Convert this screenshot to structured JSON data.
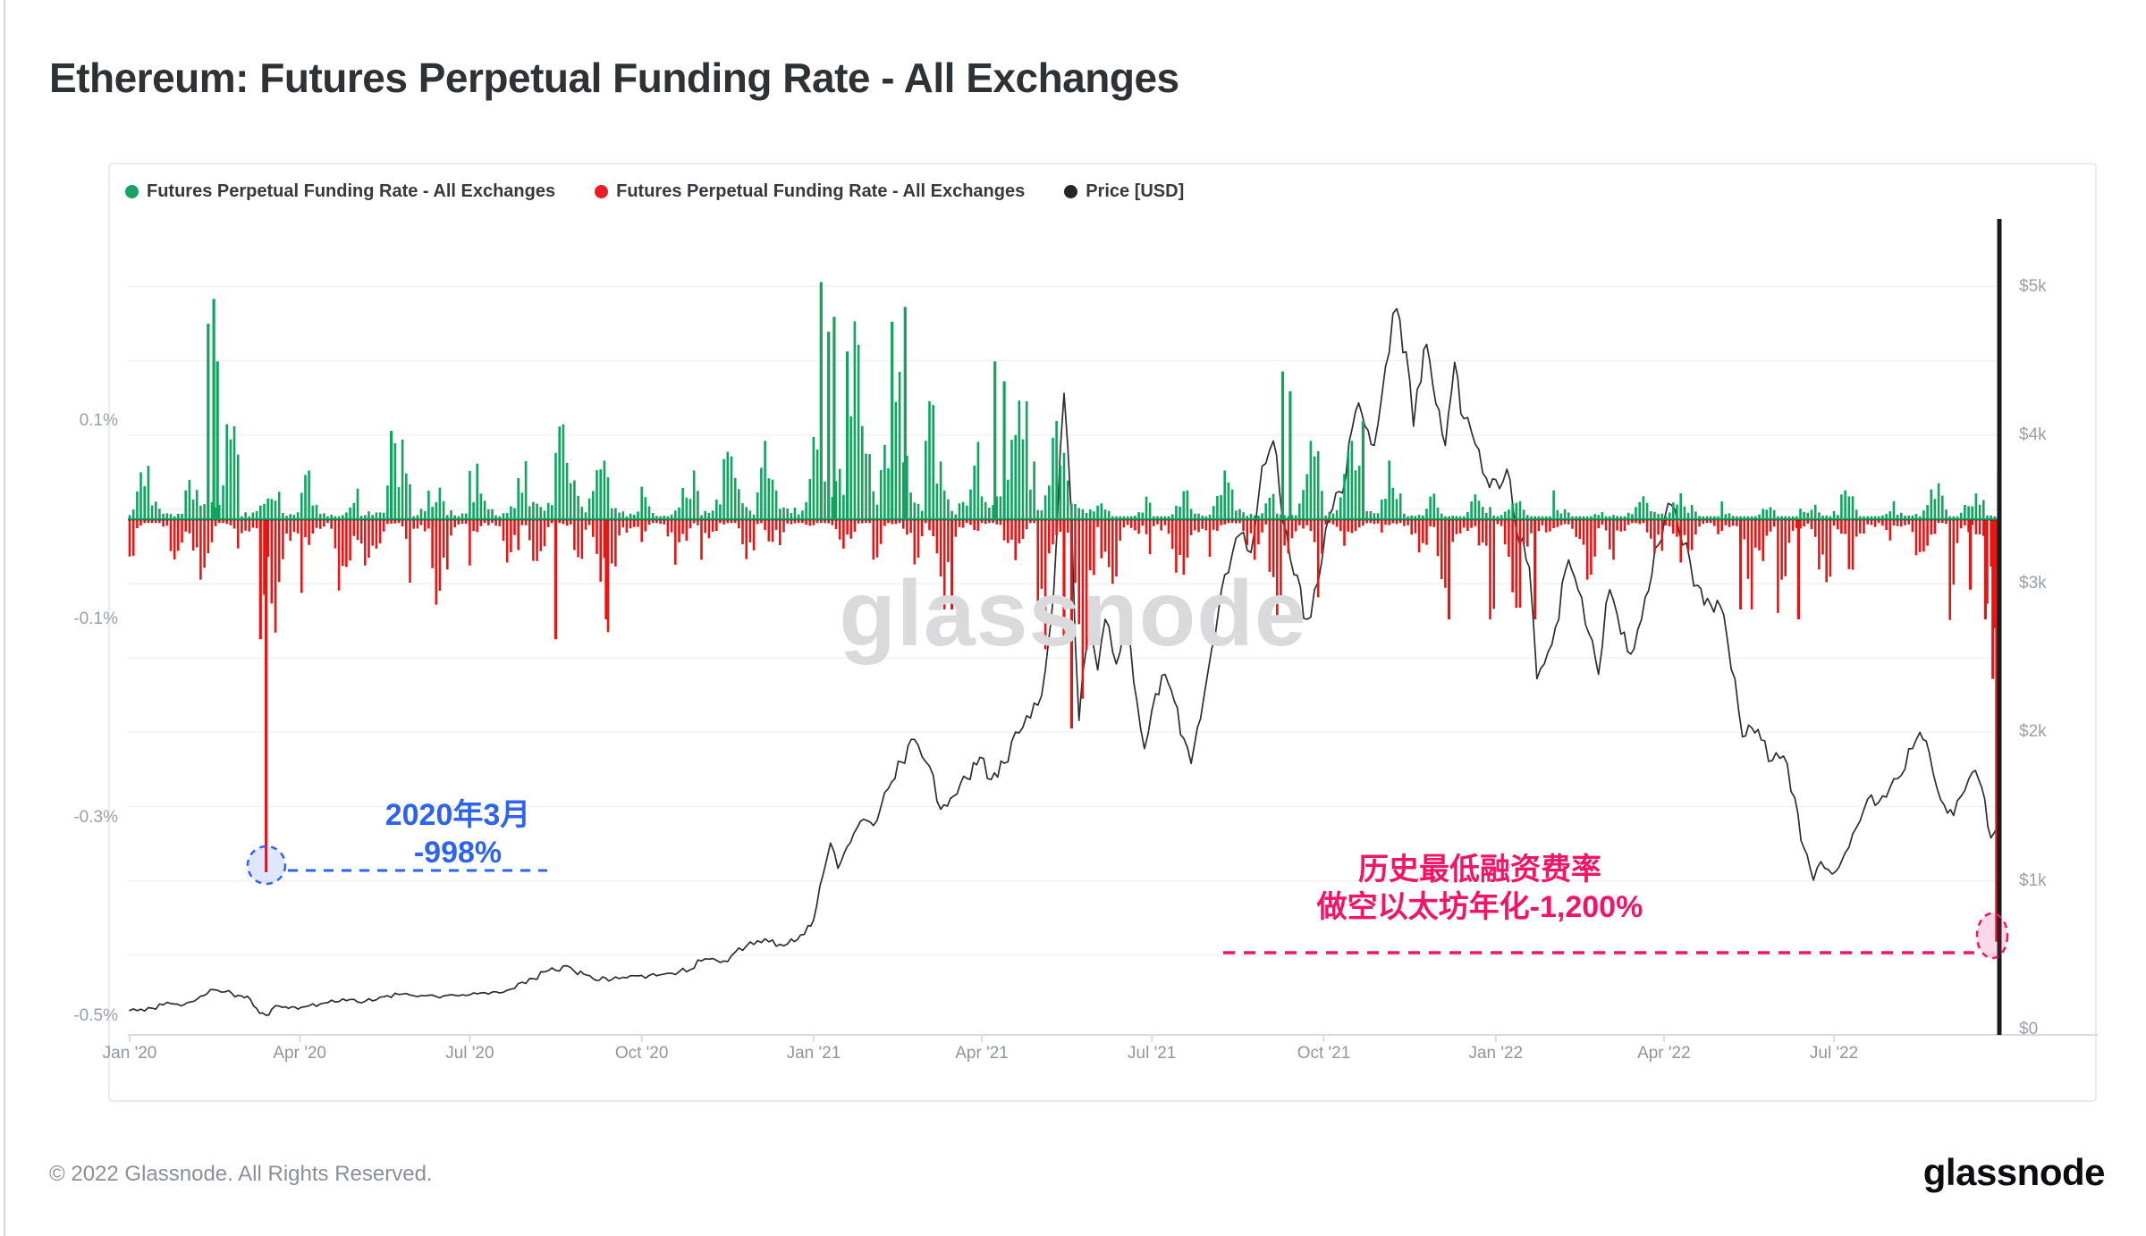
{
  "page": {
    "title": "Ethereum: Futures Perpetual Funding Rate - All Exchanges",
    "watermark": "glassnode",
    "footer_left": "© 2022 Glassnode. All Rights Reserved.",
    "logo": "glassnode"
  },
  "legend": [
    {
      "label": "Futures Perpetual Funding Rate - All Exchanges",
      "color": "#17a364"
    },
    {
      "label": "Futures Perpetual Funding Rate - All Exchanges",
      "color": "#ed1c24"
    },
    {
      "label": "Price [USD]",
      "color": "#232528"
    }
  ],
  "annotations": {
    "blue": {
      "line1": "2020年3月",
      "line2": "-998%",
      "color": "#2e63f0"
    },
    "pink": {
      "line1": "历史最低融资费率",
      "line2": "做空以太坊年化-1,200%",
      "color": "#f01567"
    }
  },
  "chart_data": {
    "type": "mixed",
    "title": "Ethereum: Futures Perpetual Funding Rate - All Exchanges",
    "series_colors": {
      "funding_positive": "#12a35f",
      "funding_negative": "#e91414",
      "price": "#2e2e30"
    },
    "funding_axis": {
      "unit": "%",
      "ticks": [
        0.1,
        -0.1,
        -0.3,
        -0.5
      ],
      "tick_labels": [
        "0.1%",
        "-0.1%",
        "-0.3%",
        "-0.5%"
      ]
    },
    "price_axis": {
      "unit": "USD",
      "ticks": [
        5000,
        4000,
        3000,
        2000,
        1000,
        0
      ],
      "tick_labels": [
        "$5k",
        "$4k",
        "$3k",
        "$2k",
        "$1k",
        "$0"
      ],
      "gridline_step_usd": 500
    },
    "x_axis": {
      "ticks": [
        {
          "label": "Jan '20",
          "day": 0
        },
        {
          "label": "Apr '20",
          "day": 91
        },
        {
          "label": "Jul '20",
          "day": 182
        },
        {
          "label": "Oct '20",
          "day": 274
        },
        {
          "label": "Jan '21",
          "day": 366
        },
        {
          "label": "Apr '21",
          "day": 456
        },
        {
          "label": "Jul '21",
          "day": 547
        },
        {
          "label": "Oct '21",
          "day": 639
        },
        {
          "label": "Jan '22",
          "day": 731
        },
        {
          "label": "Apr '22",
          "day": 821
        },
        {
          "label": "Jul '22",
          "day": 912
        }
      ],
      "days_total": 1001
    },
    "month_lengths": [
      31,
      29,
      31,
      30,
      31,
      30,
      31,
      31,
      30,
      31,
      30,
      31,
      31,
      28,
      31,
      30,
      31,
      30,
      31,
      31,
      30,
      31,
      30,
      31,
      31,
      28,
      31,
      30,
      31,
      30,
      31,
      31,
      30
    ],
    "funding_monthly_envelope": [
      {
        "month": "Jan '20",
        "g_typ": 0.018,
        "g_max": 0.06,
        "r_typ": 0.008,
        "r_max": 0.04
      },
      {
        "month": "Feb '20",
        "g_typ": 0.05,
        "g_max": 0.135,
        "r_typ": 0.015,
        "r_max": 0.06
      },
      {
        "month": "Mar '20",
        "g_typ": 0.02,
        "g_max": 0.05,
        "r_typ": 0.045,
        "r_max": 0.15
      },
      {
        "month": "Apr '20",
        "g_typ": 0.015,
        "g_max": 0.05,
        "r_typ": 0.02,
        "r_max": 0.08
      },
      {
        "month": "May '20",
        "g_typ": 0.02,
        "g_max": 0.09,
        "r_typ": 0.02,
        "r_max": 0.07
      },
      {
        "month": "Jun '20",
        "g_typ": 0.015,
        "g_max": 0.04,
        "r_typ": 0.028,
        "r_max": 0.1
      },
      {
        "month": "Jul '20",
        "g_typ": 0.022,
        "g_max": 0.06,
        "r_typ": 0.012,
        "r_max": 0.05
      },
      {
        "month": "Aug '20",
        "g_typ": 0.04,
        "g_max": 0.105,
        "r_typ": 0.012,
        "r_max": 0.05
      },
      {
        "month": "Sep '20",
        "g_typ": 0.02,
        "g_max": 0.06,
        "r_typ": 0.028,
        "r_max": 0.12
      },
      {
        "month": "Oct '20",
        "g_typ": 0.015,
        "g_max": 0.05,
        "r_typ": 0.012,
        "r_max": 0.05
      },
      {
        "month": "Nov '20",
        "g_typ": 0.025,
        "g_max": 0.07,
        "r_typ": 0.01,
        "r_max": 0.04
      },
      {
        "month": "Dec '20",
        "g_typ": 0.03,
        "g_max": 0.08,
        "r_typ": 0.01,
        "r_max": 0.03
      },
      {
        "month": "Jan '21",
        "g_typ": 0.09,
        "g_max": 0.24,
        "r_typ": 0.008,
        "r_max": 0.03
      },
      {
        "month": "Feb '21",
        "g_typ": 0.07,
        "g_max": 0.2,
        "r_typ": 0.015,
        "r_max": 0.05
      },
      {
        "month": "Mar '21",
        "g_typ": 0.045,
        "g_max": 0.12,
        "r_typ": 0.018,
        "r_max": 0.09
      },
      {
        "month": "Apr '21",
        "g_typ": 0.055,
        "g_max": 0.16,
        "r_typ": 0.012,
        "r_max": 0.05
      },
      {
        "month": "May '21",
        "g_typ": 0.025,
        "g_max": 0.1,
        "r_typ": 0.045,
        "r_max": 0.18
      },
      {
        "month": "Jun '21",
        "g_typ": 0.01,
        "g_max": 0.03,
        "r_typ": 0.03,
        "r_max": 0.08
      },
      {
        "month": "Jul '21",
        "g_typ": 0.008,
        "g_max": 0.03,
        "r_typ": 0.025,
        "r_max": 0.07
      },
      {
        "month": "Aug '21",
        "g_typ": 0.018,
        "g_max": 0.05,
        "r_typ": 0.01,
        "r_max": 0.04
      },
      {
        "month": "Sep '21",
        "g_typ": 0.018,
        "g_max": 0.08,
        "r_typ": 0.025,
        "r_max": 0.1
      },
      {
        "month": "Oct '21",
        "g_typ": 0.022,
        "g_max": 0.08,
        "r_typ": 0.01,
        "r_max": 0.03
      },
      {
        "month": "Nov '21",
        "g_typ": 0.018,
        "g_max": 0.06,
        "r_typ": 0.012,
        "r_max": 0.04
      },
      {
        "month": "Dec '21",
        "g_typ": 0.01,
        "g_max": 0.03,
        "r_typ": 0.025,
        "r_max": 0.1
      },
      {
        "month": "Jan '22",
        "g_typ": 0.008,
        "g_max": 0.02,
        "r_typ": 0.025,
        "r_max": 0.1
      },
      {
        "month": "Feb '22",
        "g_typ": 0.01,
        "g_max": 0.03,
        "r_typ": 0.015,
        "r_max": 0.06
      },
      {
        "month": "Mar '22",
        "g_typ": 0.012,
        "g_max": 0.03,
        "r_typ": 0.012,
        "r_max": 0.04
      },
      {
        "month": "Apr '22",
        "g_typ": 0.01,
        "g_max": 0.03,
        "r_typ": 0.012,
        "r_max": 0.05
      },
      {
        "month": "May '22",
        "g_typ": 0.008,
        "g_max": 0.02,
        "r_typ": 0.02,
        "r_max": 0.09
      },
      {
        "month": "Jun '22",
        "g_typ": 0.008,
        "g_max": 0.02,
        "r_typ": 0.025,
        "r_max": 0.1
      },
      {
        "month": "Jul '22",
        "g_typ": 0.01,
        "g_max": 0.03,
        "r_typ": 0.015,
        "r_max": 0.05
      },
      {
        "month": "Aug '22",
        "g_typ": 0.014,
        "g_max": 0.04,
        "r_typ": 0.015,
        "r_max": 0.05
      },
      {
        "month": "Sep '22",
        "g_typ": 0.01,
        "g_max": 0.03,
        "r_typ": 0.03,
        "r_max": 0.12
      }
    ],
    "funding_spikes": [
      {
        "day": 42,
        "value": 0.198
      },
      {
        "day": 45,
        "value": 0.223
      },
      {
        "day": 47,
        "value": 0.16
      },
      {
        "day": 70,
        "value": -0.12
      },
      {
        "day": 73,
        "value": -0.355
      },
      {
        "day": 140,
        "value": 0.09
      },
      {
        "day": 228,
        "value": -0.12
      },
      {
        "day": 255,
        "value": -0.1
      },
      {
        "day": 370,
        "value": 0.24
      },
      {
        "day": 374,
        "value": 0.19
      },
      {
        "day": 377,
        "value": 0.205
      },
      {
        "day": 384,
        "value": 0.17
      },
      {
        "day": 408,
        "value": 0.2
      },
      {
        "day": 415,
        "value": 0.215
      },
      {
        "day": 440,
        "value": -0.09
      },
      {
        "day": 463,
        "value": 0.16
      },
      {
        "day": 468,
        "value": 0.14
      },
      {
        "day": 500,
        "value": -0.12
      },
      {
        "day": 504,
        "value": -0.21
      },
      {
        "day": 617,
        "value": 0.15
      },
      {
        "day": 621,
        "value": 0.13
      },
      {
        "day": 660,
        "value": 0.1
      },
      {
        "day": 706,
        "value": -0.1
      },
      {
        "day": 752,
        "value": -0.1
      },
      {
        "day": 862,
        "value": -0.09
      },
      {
        "day": 893,
        "value": -0.1
      },
      {
        "day": 985,
        "value": -0.07
      },
      {
        "day": 993,
        "value": -0.1
      },
      {
        "day": 997,
        "value": -0.16
      },
      {
        "day": 999,
        "value": -0.425
      },
      {
        "day": 1000,
        "value": 0.05
      }
    ],
    "annotated_points": [
      {
        "label": "2020年3月 -998%",
        "day": 73,
        "funding_pct": -0.355
      },
      {
        "label": "历史最低融资费率 做空以太坊年化-1,200%",
        "day": 999,
        "funding_pct": -0.425
      }
    ],
    "price_usd": [
      [
        0,
        128
      ],
      [
        6,
        138
      ],
      [
        12,
        144
      ],
      [
        18,
        166
      ],
      [
        24,
        172
      ],
      [
        31,
        182
      ],
      [
        38,
        225
      ],
      [
        45,
        268
      ],
      [
        49,
        252
      ],
      [
        53,
        262
      ],
      [
        58,
        230
      ],
      [
        63,
        224
      ],
      [
        68,
        142
      ],
      [
        71,
        112
      ],
      [
        73,
        96
      ],
      [
        76,
        136
      ],
      [
        80,
        158
      ],
      [
        85,
        142
      ],
      [
        90,
        138
      ],
      [
        96,
        160
      ],
      [
        102,
        172
      ],
      [
        108,
        198
      ],
      [
        114,
        206
      ],
      [
        120,
        203
      ],
      [
        126,
        190
      ],
      [
        132,
        200
      ],
      [
        138,
        228
      ],
      [
        144,
        236
      ],
      [
        150,
        233
      ],
      [
        156,
        229
      ],
      [
        162,
        232
      ],
      [
        168,
        226
      ],
      [
        174,
        231
      ],
      [
        180,
        229
      ],
      [
        186,
        241
      ],
      [
        192,
        239
      ],
      [
        198,
        246
      ],
      [
        204,
        272
      ],
      [
        210,
        318
      ],
      [
        216,
        342
      ],
      [
        222,
        388
      ],
      [
        228,
        398
      ],
      [
        232,
        428
      ],
      [
        238,
        392
      ],
      [
        243,
        372
      ],
      [
        248,
        342
      ],
      [
        253,
        354
      ],
      [
        258,
        336
      ],
      [
        264,
        352
      ],
      [
        270,
        362
      ],
      [
        276,
        346
      ],
      [
        282,
        362
      ],
      [
        288,
        379
      ],
      [
        294,
        389
      ],
      [
        300,
        403
      ],
      [
        306,
        462
      ],
      [
        312,
        478
      ],
      [
        318,
        461
      ],
      [
        324,
        521
      ],
      [
        330,
        561
      ],
      [
        336,
        598
      ],
      [
        342,
        590
      ],
      [
        348,
        573
      ],
      [
        354,
        609
      ],
      [
        359,
        636
      ],
      [
        363,
        700
      ],
      [
        366,
        737
      ],
      [
        371,
        1040
      ],
      [
        375,
        1255
      ],
      [
        379,
        1085
      ],
      [
        384,
        1232
      ],
      [
        391,
        1400
      ],
      [
        398,
        1372
      ],
      [
        406,
        1622
      ],
      [
        413,
        1800
      ],
      [
        420,
        1952
      ],
      [
        428,
        1772
      ],
      [
        434,
        1482
      ],
      [
        441,
        1572
      ],
      [
        448,
        1690
      ],
      [
        455,
        1832
      ],
      [
        461,
        1682
      ],
      [
        468,
        1792
      ],
      [
        474,
        2002
      ],
      [
        480,
        2112
      ],
      [
        486,
        2182
      ],
      [
        490,
        2420
      ],
      [
        493,
        2750
      ],
      [
        496,
        3300
      ],
      [
        498,
        3900
      ],
      [
        500,
        4280
      ],
      [
        502,
        3920
      ],
      [
        504,
        3440
      ],
      [
        506,
        2620
      ],
      [
        508,
        2080
      ],
      [
        510,
        2400
      ],
      [
        514,
        2720
      ],
      [
        518,
        2420
      ],
      [
        522,
        2760
      ],
      [
        528,
        2460
      ],
      [
        534,
        2710
      ],
      [
        539,
        2210
      ],
      [
        543,
        1890
      ],
      [
        549,
        2260
      ],
      [
        554,
        2390
      ],
      [
        559,
        2210
      ],
      [
        564,
        1960
      ],
      [
        568,
        1790
      ],
      [
        573,
        2090
      ],
      [
        579,
        2560
      ],
      [
        586,
        3060
      ],
      [
        594,
        3330
      ],
      [
        600,
        3210
      ],
      [
        606,
        3790
      ],
      [
        612,
        3960
      ],
      [
        617,
        3420
      ],
      [
        623,
        3060
      ],
      [
        630,
        2760
      ],
      [
        636,
        3010
      ],
      [
        642,
        3460
      ],
      [
        649,
        3610
      ],
      [
        656,
        4160
      ],
      [
        661,
        4060
      ],
      [
        666,
        3930
      ],
      [
        672,
        4460
      ],
      [
        678,
        4850
      ],
      [
        683,
        4560
      ],
      [
        687,
        4060
      ],
      [
        691,
        4360
      ],
      [
        694,
        4610
      ],
      [
        699,
        4210
      ],
      [
        704,
        3930
      ],
      [
        709,
        4490
      ],
      [
        714,
        4110
      ],
      [
        720,
        3940
      ],
      [
        726,
        3710
      ],
      [
        731,
        3700
      ],
      [
        737,
        3770
      ],
      [
        742,
        3360
      ],
      [
        749,
        3110
      ],
      [
        753,
        2360
      ],
      [
        757,
        2460
      ],
      [
        763,
        2710
      ],
      [
        770,
        3160
      ],
      [
        775,
        2960
      ],
      [
        781,
        2660
      ],
      [
        786,
        2390
      ],
      [
        792,
        2960
      ],
      [
        798,
        2660
      ],
      [
        805,
        2560
      ],
      [
        811,
        2910
      ],
      [
        818,
        3260
      ],
      [
        825,
        3530
      ],
      [
        831,
        3260
      ],
      [
        839,
        2990
      ],
      [
        846,
        2860
      ],
      [
        853,
        2790
      ],
      [
        859,
        2360
      ],
      [
        863,
        1970
      ],
      [
        868,
        2030
      ],
      [
        873,
        1950
      ],
      [
        879,
        1810
      ],
      [
        885,
        1840
      ],
      [
        891,
        1560
      ],
      [
        896,
        1220
      ],
      [
        901,
        1005
      ],
      [
        905,
        1130
      ],
      [
        909,
        1075
      ],
      [
        913,
        1065
      ],
      [
        918,
        1190
      ],
      [
        924,
        1360
      ],
      [
        930,
        1550
      ],
      [
        936,
        1530
      ],
      [
        942,
        1630
      ],
      [
        948,
        1710
      ],
      [
        954,
        1890
      ],
      [
        958,
        2000
      ],
      [
        963,
        1860
      ],
      [
        967,
        1630
      ],
      [
        971,
        1510
      ],
      [
        976,
        1440
      ],
      [
        980,
        1570
      ],
      [
        986,
        1730
      ],
      [
        991,
        1630
      ],
      [
        996,
        1290
      ],
      [
        999,
        1350
      ],
      [
        1001,
        1300
      ]
    ]
  }
}
